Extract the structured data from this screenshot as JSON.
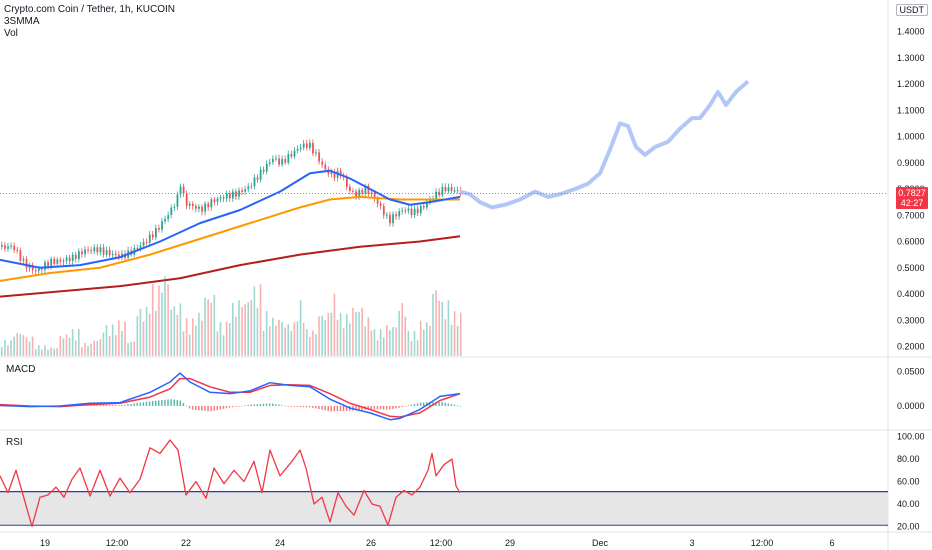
{
  "header": {
    "symbol_line": "Crypto.com Coin / Tether, 1h, KUCOIN",
    "indicator_1": "3SMMA",
    "indicator_2": "Vol"
  },
  "currency_badge": "USDT",
  "price_tag": {
    "price": "0.7827",
    "countdown": "42:27",
    "color": "#f23645"
  },
  "panes": {
    "macd_label": "MACD",
    "rsi_label": "RSI"
  },
  "colors": {
    "up": "#26a69a",
    "down": "#ef5350",
    "ma_fast": "#2962ff",
    "ma_mid": "#ff9800",
    "ma_slow": "#b71c1c",
    "projection": "#b3c7f7",
    "macd": "#2962ff",
    "signal": "#f23645",
    "rsi": "#f23645",
    "rsi_band": "#1e40af"
  },
  "chart_data": [
    {
      "type": "candlestick",
      "title": "Crypto.com Coin / Tether, 1h, KUCOIN",
      "ylim": [
        0.16,
        1.52
      ],
      "y_ticks": [
        "1.4000",
        "1.3000",
        "1.2000",
        "1.1000",
        "1.0000",
        "0.9000",
        "0.8000",
        "0.7000",
        "0.6000",
        "0.5000",
        "0.4000",
        "0.3000",
        "0.2000"
      ],
      "x_ticks": [
        "19",
        "12:00",
        "22",
        "24",
        "26",
        "12:00",
        "29",
        "Dec",
        "3",
        "12:00",
        "6"
      ],
      "close_path": [
        [
          0,
          0.58
        ],
        [
          12,
          0.59
        ],
        [
          24,
          0.52
        ],
        [
          36,
          0.49
        ],
        [
          48,
          0.52
        ],
        [
          60,
          0.52
        ],
        [
          72,
          0.53
        ],
        [
          84,
          0.56
        ],
        [
          96,
          0.57
        ],
        [
          108,
          0.56
        ],
        [
          120,
          0.55
        ],
        [
          132,
          0.57
        ],
        [
          144,
          0.6
        ],
        [
          156,
          0.64
        ],
        [
          168,
          0.7
        ],
        [
          176,
          0.75
        ],
        [
          180,
          0.82
        ],
        [
          184,
          0.74
        ],
        [
          192,
          0.73
        ],
        [
          200,
          0.72
        ],
        [
          212,
          0.76
        ],
        [
          224,
          0.78
        ],
        [
          236,
          0.79
        ],
        [
          248,
          0.81
        ],
        [
          260,
          0.86
        ],
        [
          272,
          0.91
        ],
        [
          280,
          0.89
        ],
        [
          292,
          0.93
        ],
        [
          300,
          0.96
        ],
        [
          308,
          0.97
        ],
        [
          316,
          0.93
        ],
        [
          324,
          0.88
        ],
        [
          332,
          0.86
        ],
        [
          340,
          0.87
        ],
        [
          348,
          0.8
        ],
        [
          356,
          0.78
        ],
        [
          364,
          0.8
        ],
        [
          372,
          0.77
        ],
        [
          380,
          0.72
        ],
        [
          388,
          0.67
        ],
        [
          396,
          0.7
        ],
        [
          404,
          0.72
        ],
        [
          412,
          0.71
        ],
        [
          420,
          0.73
        ],
        [
          428,
          0.76
        ],
        [
          436,
          0.79
        ],
        [
          444,
          0.81
        ],
        [
          452,
          0.8
        ],
        [
          460,
          0.79
        ]
      ],
      "sma_fast": [
        [
          0,
          0.53
        ],
        [
          40,
          0.5
        ],
        [
          80,
          0.51
        ],
        [
          120,
          0.54
        ],
        [
          160,
          0.6
        ],
        [
          200,
          0.67
        ],
        [
          240,
          0.72
        ],
        [
          280,
          0.79
        ],
        [
          310,
          0.86
        ],
        [
          330,
          0.87
        ],
        [
          350,
          0.84
        ],
        [
          370,
          0.8
        ],
        [
          390,
          0.76
        ],
        [
          410,
          0.74
        ],
        [
          430,
          0.75
        ],
        [
          460,
          0.77
        ]
      ],
      "sma_mid": [
        [
          0,
          0.45
        ],
        [
          50,
          0.48
        ],
        [
          100,
          0.5
        ],
        [
          150,
          0.55
        ],
        [
          200,
          0.61
        ],
        [
          250,
          0.67
        ],
        [
          300,
          0.73
        ],
        [
          330,
          0.76
        ],
        [
          360,
          0.77
        ],
        [
          400,
          0.76
        ],
        [
          430,
          0.76
        ],
        [
          460,
          0.76
        ]
      ],
      "sma_slow": [
        [
          0,
          0.39
        ],
        [
          60,
          0.41
        ],
        [
          120,
          0.43
        ],
        [
          180,
          0.46
        ],
        [
          240,
          0.51
        ],
        [
          300,
          0.55
        ],
        [
          360,
          0.58
        ],
        [
          420,
          0.6
        ],
        [
          460,
          0.62
        ]
      ],
      "projection": [
        [
          460,
          0.79
        ],
        [
          470,
          0.78
        ],
        [
          480,
          0.75
        ],
        [
          492,
          0.73
        ],
        [
          505,
          0.74
        ],
        [
          520,
          0.76
        ],
        [
          535,
          0.79
        ],
        [
          548,
          0.77
        ],
        [
          560,
          0.78
        ],
        [
          575,
          0.8
        ],
        [
          588,
          0.82
        ],
        [
          600,
          0.86
        ],
        [
          610,
          0.95
        ],
        [
          620,
          1.05
        ],
        [
          628,
          1.04
        ],
        [
          636,
          0.96
        ],
        [
          645,
          0.93
        ],
        [
          655,
          0.96
        ],
        [
          668,
          0.98
        ],
        [
          680,
          1.03
        ],
        [
          692,
          1.07
        ],
        [
          700,
          1.07
        ],
        [
          710,
          1.12
        ],
        [
          718,
          1.17
        ],
        [
          726,
          1.12
        ],
        [
          736,
          1.17
        ],
        [
          748,
          1.21
        ]
      ],
      "volume": [
        0.18,
        0.28,
        0.22,
        0.12,
        0.1,
        0.25,
        0.3,
        0.15,
        0.2,
        0.35,
        0.4,
        0.18,
        0.55,
        0.8,
        0.95,
        0.6,
        0.42,
        0.5,
        0.72,
        0.38,
        0.6,
        0.66,
        0.8,
        0.5,
        0.44,
        0.38,
        0.62,
        0.3,
        0.5,
        0.7,
        0.48,
        0.58,
        0.44,
        0.3,
        0.36,
        0.62,
        0.28,
        0.4,
        0.8,
        0.62,
        0.5
      ]
    },
    {
      "type": "line",
      "title": "MACD",
      "y_ticks": [
        "0.0500",
        "0.0000"
      ],
      "ylim": [
        -0.035,
        0.07
      ],
      "macd": [
        [
          0,
          0.001
        ],
        [
          30,
          -0.001
        ],
        [
          60,
          0.0
        ],
        [
          90,
          0.004
        ],
        [
          120,
          0.005
        ],
        [
          150,
          0.02
        ],
        [
          170,
          0.035
        ],
        [
          180,
          0.048
        ],
        [
          190,
          0.035
        ],
        [
          210,
          0.02
        ],
        [
          230,
          0.018
        ],
        [
          250,
          0.022
        ],
        [
          270,
          0.034
        ],
        [
          290,
          0.03
        ],
        [
          310,
          0.028
        ],
        [
          330,
          0.01
        ],
        [
          350,
          -0.003
        ],
        [
          370,
          -0.01
        ],
        [
          390,
          -0.02
        ],
        [
          400,
          -0.018
        ],
        [
          420,
          -0.005
        ],
        [
          440,
          0.014
        ],
        [
          460,
          0.018
        ]
      ],
      "signal": [
        [
          0,
          0.002
        ],
        [
          30,
          0.0
        ],
        [
          60,
          -0.001
        ],
        [
          90,
          0.002
        ],
        [
          120,
          0.004
        ],
        [
          150,
          0.013
        ],
        [
          170,
          0.025
        ],
        [
          180,
          0.04
        ],
        [
          190,
          0.04
        ],
        [
          210,
          0.028
        ],
        [
          230,
          0.02
        ],
        [
          250,
          0.02
        ],
        [
          270,
          0.03
        ],
        [
          290,
          0.031
        ],
        [
          310,
          0.03
        ],
        [
          330,
          0.018
        ],
        [
          350,
          0.004
        ],
        [
          370,
          -0.005
        ],
        [
          390,
          -0.015
        ],
        [
          400,
          -0.016
        ],
        [
          420,
          -0.01
        ],
        [
          440,
          0.008
        ],
        [
          460,
          0.018
        ]
      ]
    },
    {
      "type": "line",
      "title": "RSI",
      "y_ticks": [
        "100.00",
        "80.00",
        "60.00",
        "40.00",
        "20.00"
      ],
      "ylim": [
        15,
        105
      ],
      "band": [
        21,
        51
      ],
      "rsi": [
        [
          0,
          65
        ],
        [
          8,
          50
        ],
        [
          16,
          70
        ],
        [
          24,
          45
        ],
        [
          32,
          20
        ],
        [
          40,
          46
        ],
        [
          48,
          48
        ],
        [
          56,
          55
        ],
        [
          64,
          46
        ],
        [
          72,
          62
        ],
        [
          80,
          72
        ],
        [
          90,
          47
        ],
        [
          100,
          70
        ],
        [
          110,
          47
        ],
        [
          120,
          63
        ],
        [
          130,
          50
        ],
        [
          140,
          62
        ],
        [
          150,
          90
        ],
        [
          160,
          85
        ],
        [
          170,
          97
        ],
        [
          178,
          88
        ],
        [
          186,
          48
        ],
        [
          196,
          60
        ],
        [
          206,
          45
        ],
        [
          214,
          72
        ],
        [
          224,
          58
        ],
        [
          234,
          70
        ],
        [
          244,
          60
        ],
        [
          254,
          78
        ],
        [
          262,
          50
        ],
        [
          270,
          88
        ],
        [
          280,
          65
        ],
        [
          292,
          78
        ],
        [
          300,
          88
        ],
        [
          306,
          72
        ],
        [
          314,
          40
        ],
        [
          322,
          46
        ],
        [
          330,
          24
        ],
        [
          338,
          50
        ],
        [
          346,
          38
        ],
        [
          354,
          30
        ],
        [
          364,
          52
        ],
        [
          372,
          40
        ],
        [
          380,
          38
        ],
        [
          388,
          21
        ],
        [
          396,
          46
        ],
        [
          404,
          52
        ],
        [
          412,
          48
        ],
        [
          420,
          55
        ],
        [
          428,
          70
        ],
        [
          432,
          85
        ],
        [
          436,
          65
        ],
        [
          444,
          75
        ],
        [
          452,
          80
        ],
        [
          456,
          56
        ],
        [
          460,
          50
        ]
      ]
    }
  ]
}
